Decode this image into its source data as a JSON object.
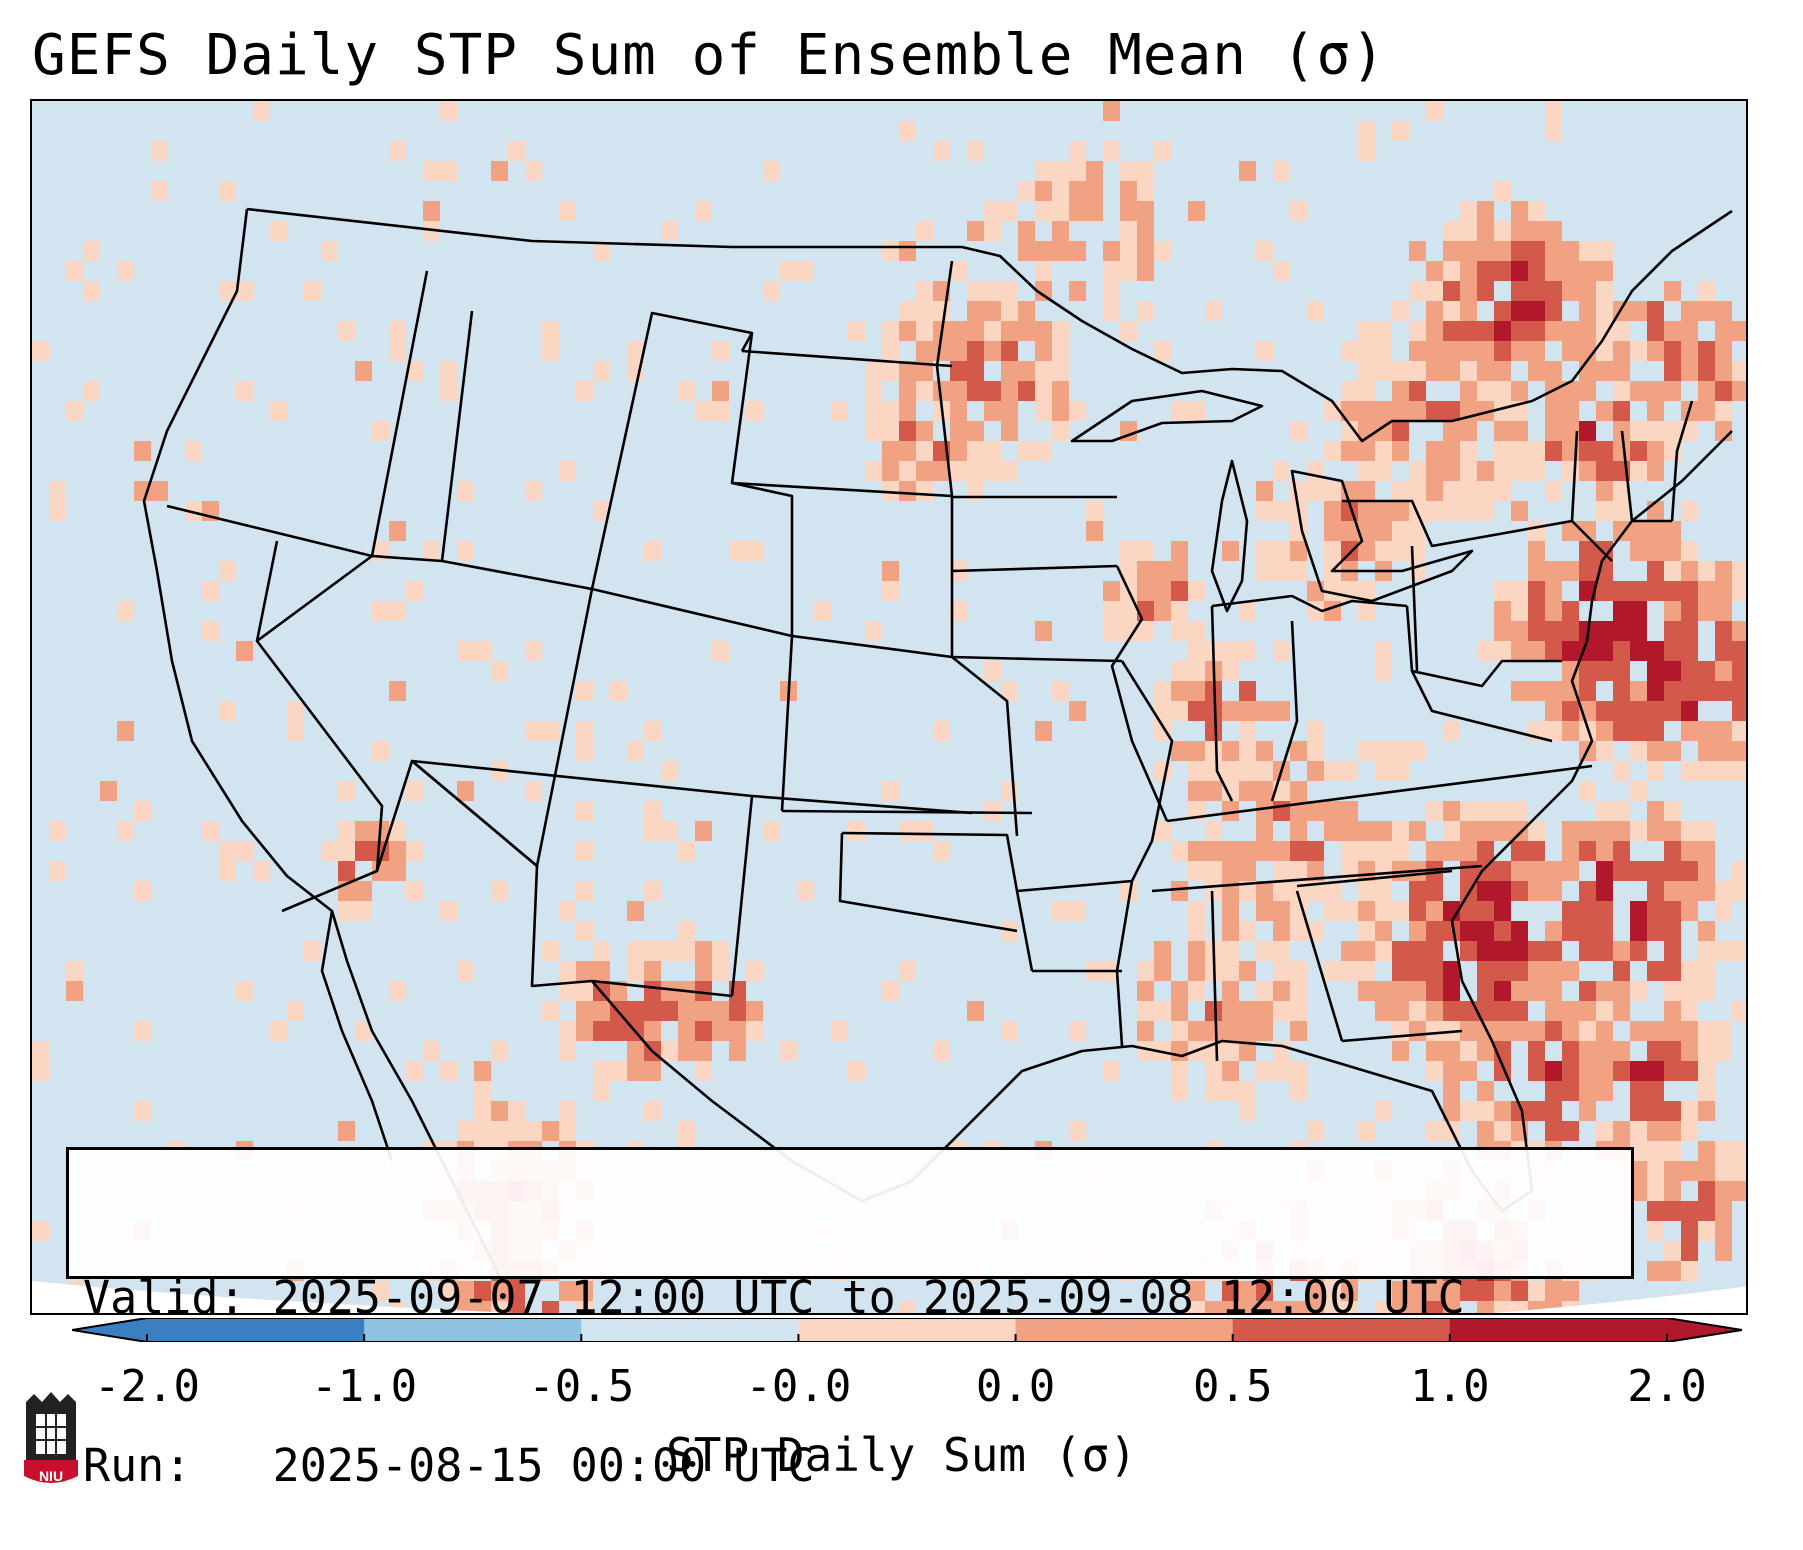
{
  "title": "GEFS Daily STP Sum of Ensemble Mean (σ)",
  "info": {
    "valid_line": "Valid: 2025-09-07 12:00 UTC to 2025-09-08 12:00 UTC",
    "run_line": "Run:   2025-08-15 00:00 UTC"
  },
  "colorbar": {
    "label": "STP Daily Sum (σ)",
    "ticks": [
      "-2.0",
      "-1.0",
      "-0.5",
      "-0.0",
      "0.0",
      "0.5",
      "1.0",
      "2.0"
    ],
    "colors": [
      "#3a7fc0",
      "#8ec4e2",
      "#d1e4f0",
      "#f9f9f9",
      "#fbd6c2",
      "#f0a282",
      "#d35a4b",
      "#b2182b"
    ],
    "extend": "both"
  },
  "map": {
    "region": "Continental United States",
    "background_color": "#d1e4f0",
    "outside_color": "#ffffff"
  },
  "logo": {
    "text": "NIU",
    "color": "#c8102e"
  }
}
